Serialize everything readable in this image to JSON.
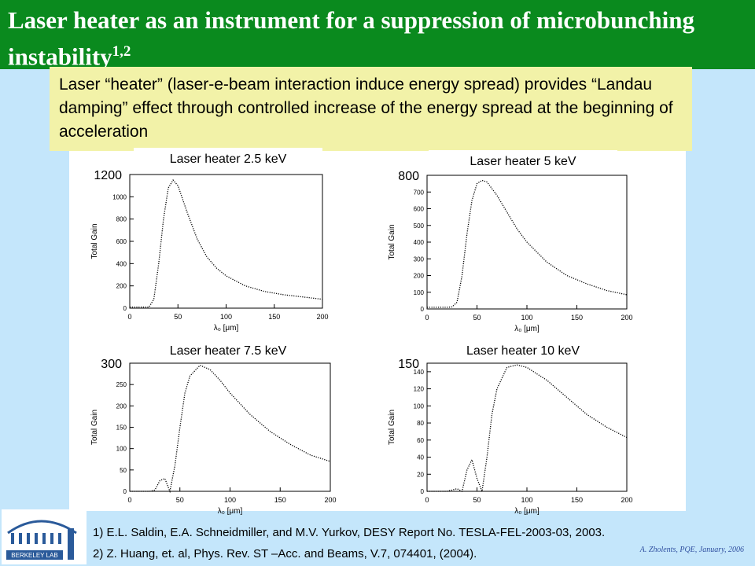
{
  "slide": {
    "title": "Laser heater as an instrument for a suppression of microbunching instability",
    "title_sup": "1,2",
    "callout": "Laser “heater” (laser-e-beam interaction induce energy spread) provides “Landau damping” effect through controlled increase of the energy spread at the beginning of acceleration",
    "references": [
      "1) E.L. Saldin, E.A. Schneidmiller, and M.V. Yurkov, DESY Report No. TESLA-FEL-2003-03, 2003.",
      "2) Z. Huang, et. al, Phys. Rev. ST –Acc. and Beams, V.7, 074401, (2004)."
    ],
    "footer": "A. Zholents, PQE, January, 2006",
    "logo_text": "BERKELEY LAB"
  },
  "chart_data": [
    {
      "type": "line",
      "title": "Laser heater 2.5 keV",
      "x_label": "λ₀ [μm]",
      "y_label": "Total Gain",
      "x": [
        0,
        10,
        20,
        25,
        30,
        35,
        40,
        45,
        50,
        60,
        70,
        80,
        90,
        100,
        120,
        140,
        160,
        180,
        200
      ],
      "values": [
        10,
        10,
        10,
        80,
        400,
        800,
        1080,
        1150,
        1100,
        850,
        620,
        460,
        360,
        290,
        200,
        150,
        120,
        100,
        80
      ],
      "xlim": [
        0,
        200
      ],
      "xticks": [
        0,
        50,
        100,
        150,
        200
      ],
      "ylim": [
        0,
        1200
      ],
      "yticks": [
        0,
        200,
        400,
        600,
        800,
        1000,
        1200
      ],
      "color": "#000000"
    },
    {
      "type": "line",
      "title": "Laser heater 5 keV",
      "x_label": "λ₀ [μm]",
      "y_label": "Total Gain",
      "x": [
        0,
        10,
        20,
        25,
        30,
        35,
        40,
        45,
        50,
        55,
        60,
        70,
        80,
        90,
        100,
        120,
        140,
        160,
        180,
        200
      ],
      "values": [
        10,
        10,
        10,
        12,
        40,
        200,
        450,
        650,
        750,
        770,
        760,
        680,
        580,
        480,
        400,
        280,
        200,
        150,
        110,
        85
      ],
      "xlim": [
        0,
        200
      ],
      "xticks": [
        0,
        50,
        100,
        150,
        200
      ],
      "ylim": [
        0,
        800
      ],
      "yticks": [
        0,
        100,
        200,
        300,
        400,
        500,
        600,
        700,
        800
      ],
      "color": "#000000"
    },
    {
      "type": "line",
      "title": "Laser heater 7.5 keV",
      "x_label": "λ₀ [μm]",
      "y_label": "Total Gain",
      "x": [
        0,
        10,
        20,
        25,
        30,
        35,
        40,
        45,
        50,
        55,
        60,
        70,
        80,
        90,
        100,
        120,
        140,
        160,
        180,
        200
      ],
      "values": [
        0,
        0,
        0,
        3,
        25,
        30,
        0,
        60,
        150,
        230,
        270,
        295,
        285,
        260,
        230,
        180,
        140,
        110,
        85,
        70
      ],
      "xlim": [
        0,
        200
      ],
      "xticks": [
        0,
        50,
        100,
        150,
        200
      ],
      "ylim": [
        0,
        300
      ],
      "yticks": [
        0,
        50,
        100,
        150,
        200,
        250,
        300
      ],
      "color": "#000000"
    },
    {
      "type": "line",
      "title": "Laser heater 10 keV",
      "x_label": "λ₀ [μm]",
      "y_label": "Total Gain",
      "x": [
        0,
        10,
        20,
        30,
        35,
        40,
        45,
        50,
        55,
        60,
        65,
        70,
        80,
        90,
        100,
        120,
        140,
        160,
        180,
        200
      ],
      "values": [
        0,
        0,
        0,
        3,
        0,
        25,
        37,
        15,
        0,
        40,
        90,
        120,
        145,
        148,
        145,
        130,
        110,
        90,
        75,
        63
      ],
      "xlim": [
        0,
        200
      ],
      "xticks": [
        0,
        50,
        100,
        150,
        200
      ],
      "ylim": [
        0,
        150
      ],
      "yticks": [
        0,
        20,
        40,
        60,
        80,
        100,
        120,
        140,
        150
      ],
      "color": "#000000"
    }
  ]
}
